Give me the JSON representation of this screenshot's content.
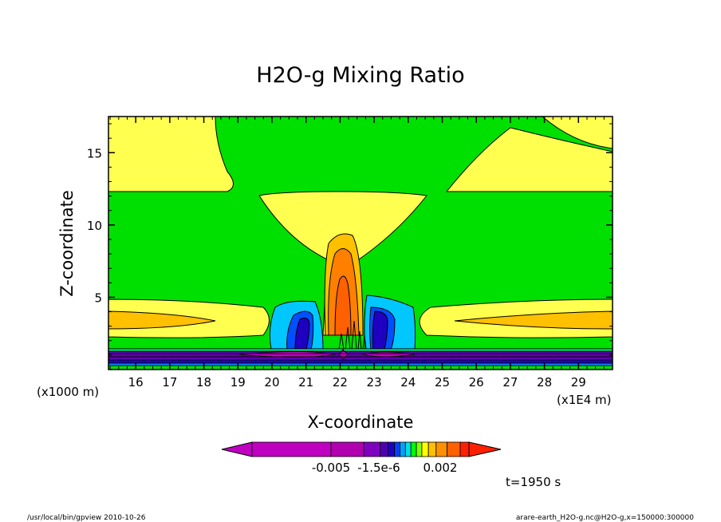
{
  "chart_data": {
    "type": "contour",
    "title": "H2O-g Mixing Ratio",
    "xlabel": "X-coordinate",
    "ylabel": "Z-coordinate",
    "x_unit_left": "(x1000 m)",
    "x_unit_right": "(x1E4 m)",
    "xlim": [
      15.2,
      30.0
    ],
    "ylim": [
      0.0,
      17.5
    ],
    "x_ticks": [
      "16",
      "17",
      "18",
      "19",
      "20",
      "21",
      "22",
      "23",
      "24",
      "25",
      "26",
      "27",
      "28",
      "29"
    ],
    "y_ticks": [
      "5",
      "10",
      "15"
    ],
    "colorbar_labels": [
      "-0.005",
      "-1.5e-6",
      "0.002"
    ],
    "colorbar_colors": [
      "#c000c0",
      "#b000b0",
      "#8000c0",
      "#5000b0",
      "#2000c0",
      "#0040ff",
      "#00a0ff",
      "#00e0e0",
      "#00ff00",
      "#80ff00",
      "#ffff00",
      "#ffc000",
      "#ff9000",
      "#ff6000",
      "#ff2000"
    ],
    "time_label": "t=1950 s",
    "field_colors": {
      "background": "#00e000",
      "moist": "#ffff50",
      "very_moist": "#ffc000",
      "core": "#ff8000",
      "boundary_layer_dark": "#6000b0",
      "boundary_layer_magenta": "#c000c0",
      "cyan": "#00c8ff",
      "blue": "#0050ff"
    }
  },
  "footer": {
    "left": "/usr/local/bin/gpview  2010-10-26",
    "right": "arare-earth_H2O-g.nc@H2O-g,x=150000:300000"
  }
}
